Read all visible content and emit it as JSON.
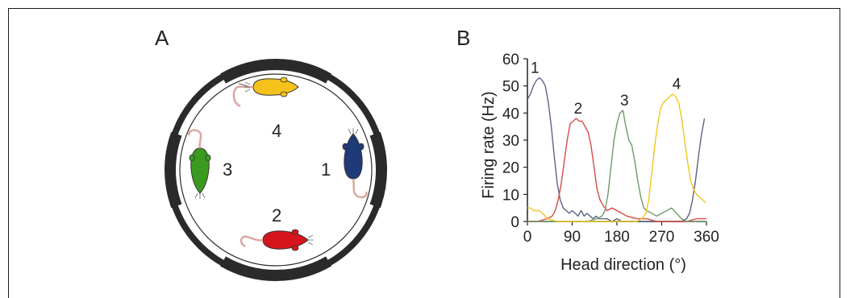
{
  "panels": {
    "a": {
      "label": "A"
    },
    "b": {
      "label": "B"
    }
  },
  "arena": {
    "positions": [
      {
        "number": "4",
        "rat_color": "#F5C21B",
        "rat_name": "yellow-rat"
      },
      {
        "number": "3",
        "rat_color": "#3A9A1E",
        "rat_name": "green-rat"
      },
      {
        "number": "1",
        "rat_color": "#1F3A78",
        "rat_name": "blue-rat"
      },
      {
        "number": "2",
        "rat_color": "#D5151B",
        "rat_name": "red-rat"
      }
    ],
    "wall_color": "#2a2a2a",
    "tail_color": "#D9A9A0"
  },
  "chart_data": {
    "type": "line",
    "xlabel": "Head direction (°)",
    "ylabel": "Firing rate (Hz)",
    "xlim": [
      0,
      360
    ],
    "ylim": [
      0,
      60
    ],
    "xticks": [
      0,
      90,
      180,
      270,
      360
    ],
    "yticks": [
      0,
      10,
      20,
      30,
      40,
      50,
      60
    ],
    "grid": false,
    "series": [
      {
        "name": "1",
        "color": "#5A6386",
        "x": [
          0,
          6,
          12,
          18,
          24,
          30,
          36,
          42,
          48,
          54,
          60,
          66,
          72,
          78,
          84,
          90,
          96,
          102,
          108,
          114,
          120,
          126,
          132,
          138,
          144,
          150,
          160,
          170,
          180,
          190,
          200,
          220,
          240,
          260,
          280,
          300,
          310,
          320,
          326,
          332,
          338,
          344,
          350,
          356
        ],
        "y": [
          45,
          47,
          50,
          52,
          53,
          52,
          50,
          44,
          35,
          24,
          14,
          8,
          5,
          4,
          3,
          4,
          3,
          2,
          4,
          2,
          3,
          2,
          1,
          2,
          1,
          1,
          1,
          0,
          1,
          0,
          0,
          0,
          0,
          0,
          0,
          0,
          0,
          1,
          3,
          8,
          15,
          24,
          32,
          38
        ]
      },
      {
        "name": "2",
        "color": "#D94A45",
        "x": [
          0,
          20,
          40,
          50,
          56,
          62,
          68,
          74,
          80,
          86,
          92,
          98,
          104,
          110,
          116,
          122,
          128,
          134,
          140,
          146,
          152,
          160,
          170,
          180,
          190,
          200,
          220,
          240,
          260,
          280,
          300,
          320,
          340,
          360
        ],
        "y": [
          0,
          0,
          1,
          2,
          4,
          8,
          14,
          22,
          30,
          36,
          37,
          38,
          37,
          37,
          35,
          33,
          28,
          20,
          12,
          8,
          6,
          4,
          5,
          4,
          3,
          2,
          1,
          1,
          0,
          0,
          0,
          0,
          1,
          1
        ]
      },
      {
        "name": "3",
        "color": "#6E9A6A",
        "x": [
          0,
          40,
          80,
          120,
          140,
          150,
          156,
          162,
          168,
          174,
          180,
          186,
          192,
          198,
          204,
          210,
          216,
          222,
          228,
          234,
          240,
          250,
          260,
          270,
          280,
          290,
          300,
          310,
          320,
          340,
          360
        ],
        "y": [
          0,
          0,
          0,
          0,
          1,
          2,
          4,
          10,
          20,
          30,
          36,
          40,
          41,
          35,
          30,
          28,
          22,
          15,
          9,
          5,
          4,
          3,
          2,
          3,
          4,
          5,
          3,
          1,
          0,
          0,
          0
        ]
      },
      {
        "name": "4",
        "color": "#F0C71F",
        "x": [
          0,
          6,
          12,
          18,
          24,
          30,
          36,
          40,
          60,
          100,
          140,
          180,
          200,
          220,
          230,
          238,
          244,
          250,
          256,
          262,
          268,
          274,
          280,
          286,
          292,
          298,
          304,
          310,
          316,
          322,
          328,
          334,
          340,
          346,
          352,
          358
        ],
        "y": [
          5,
          5,
          4,
          4,
          4,
          3,
          2,
          1,
          0,
          0,
          0,
          0,
          0,
          0,
          1,
          3,
          8,
          18,
          28,
          36,
          42,
          44,
          45,
          46,
          47,
          46,
          44,
          38,
          30,
          22,
          15,
          12,
          10,
          9,
          8,
          7
        ]
      }
    ],
    "peak_labels": [
      {
        "text": "1",
        "x": 15,
        "y": 56
      },
      {
        "text": "2",
        "x": 102,
        "y": 41
      },
      {
        "text": "3",
        "x": 195,
        "y": 44
      },
      {
        "text": "4",
        "x": 300,
        "y": 50
      }
    ]
  }
}
